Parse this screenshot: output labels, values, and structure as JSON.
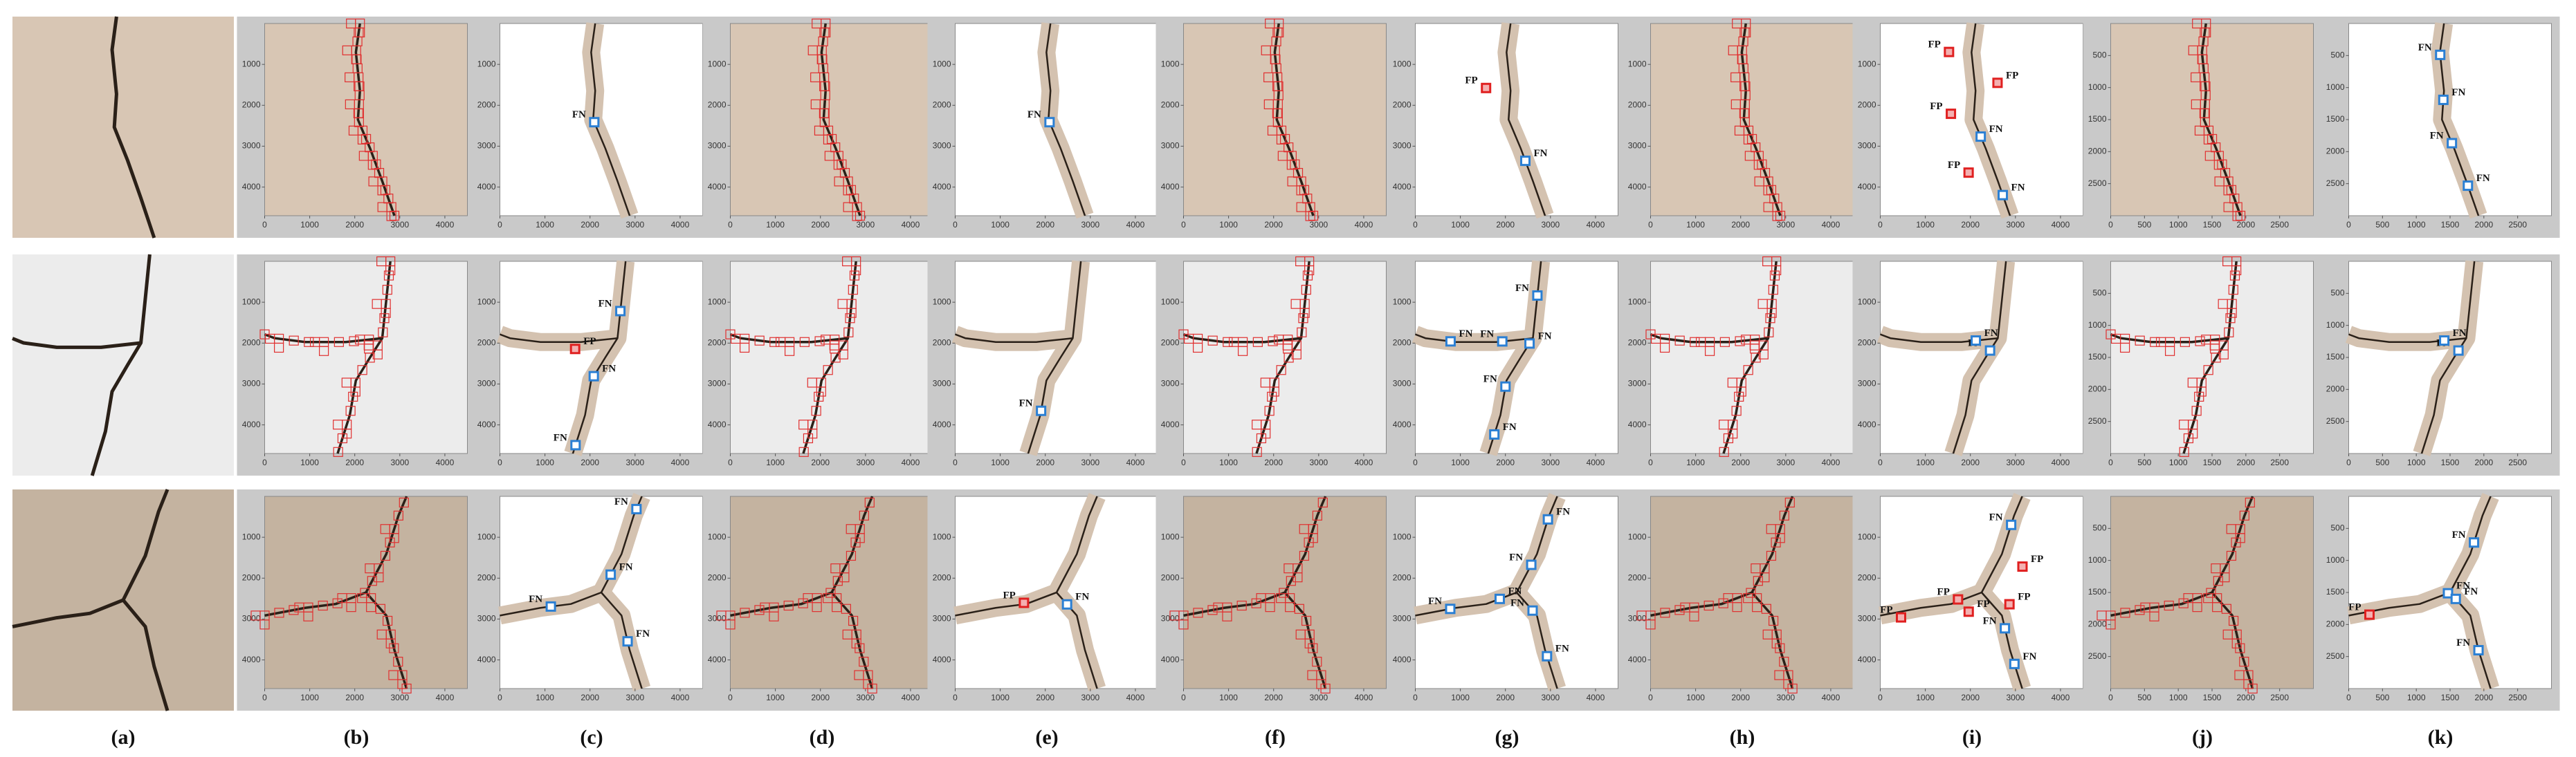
{
  "column_labels": [
    "(a)",
    "(b)",
    "(c)",
    "(d)",
    "(e)",
    "(f)",
    "(g)",
    "(h)",
    "(i)",
    "(j)",
    "(k)"
  ],
  "axes": {
    "large": {
      "xlim": [
        0,
        4500
      ],
      "ylim": [
        0,
        4700
      ],
      "x_ticks": [
        0,
        1000,
        2000,
        3000,
        4000
      ],
      "y_ticks": [
        1000,
        2000,
        3000,
        4000
      ]
    },
    "small": {
      "xlim": [
        0,
        3000
      ],
      "ylim": [
        0,
        3000
      ],
      "x_ticks": [
        0,
        500,
        1000,
        1500,
        2000,
        2500
      ],
      "y_ticks": [
        500,
        1000,
        1500,
        2000,
        2500
      ]
    }
  },
  "annotations": [
    [
      [
        "FN"
      ],
      [
        "FN"
      ],
      [
        "FP",
        "FN"
      ],
      [
        "FP",
        "FP",
        "FP",
        "FN",
        "FP",
        "FN"
      ],
      [
        "FN",
        "FN",
        "FN",
        "FN"
      ]
    ],
    [
      [
        "FN",
        "FN",
        "FN",
        "FP"
      ],
      [
        "FN"
      ],
      [
        "FN",
        "FN",
        "FN",
        "FN",
        "FN",
        "FN"
      ],
      [
        "FN",
        "FN"
      ],
      [
        "FN",
        "FN"
      ]
    ],
    [
      [
        "FN",
        "FN",
        "FN",
        "FN"
      ],
      [
        "FP",
        "FN"
      ],
      [
        "FN",
        "FN",
        "FN",
        "FN",
        "FN",
        "FN"
      ],
      [
        "FP",
        "FP",
        "FP",
        "FP",
        "FN",
        "FP",
        "FN",
        "FN"
      ],
      [
        "FP",
        "FN",
        "FN",
        "FN",
        "FN"
      ]
    ]
  ]
}
